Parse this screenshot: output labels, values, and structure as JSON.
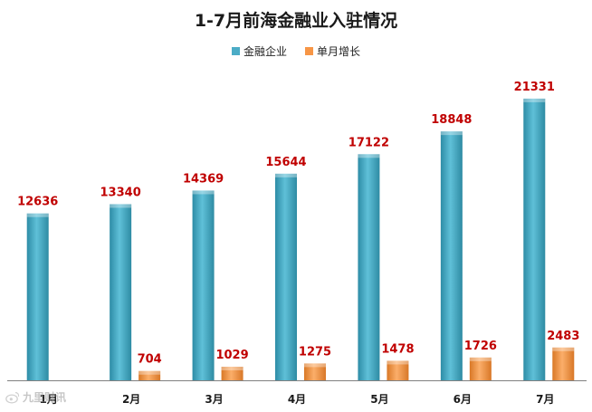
{
  "colors": {
    "series_1": "#4BACC6",
    "series_2": "#F79646",
    "value_label": "#C00000",
    "axis": "#808080"
  },
  "watermark": {
    "icon": "weibo-logo-icon",
    "text": "九里财讯"
  },
  "chart_data": {
    "type": "bar",
    "title": "1-7月前海金融业入驻情况",
    "xlabel": "",
    "ylabel": "",
    "ylim": [
      0,
      24000
    ],
    "grid": false,
    "legend_position": "top",
    "categories": [
      "1月",
      "2月",
      "3月",
      "4月",
      "5月",
      "6月",
      "7月"
    ],
    "series": [
      {
        "name": "金融企业",
        "values": [
          12636,
          13340,
          14369,
          15644,
          17122,
          18848,
          21331
        ],
        "labels": [
          "12636",
          "13340",
          "14369",
          "15644",
          "17122",
          "18848",
          "21331"
        ]
      },
      {
        "name": "单月增长",
        "values": [
          null,
          704,
          1029,
          1275,
          1478,
          1726,
          2483
        ],
        "labels": [
          "",
          "704",
          "1029",
          "1275",
          "1478",
          "1726",
          "2483"
        ]
      }
    ]
  }
}
